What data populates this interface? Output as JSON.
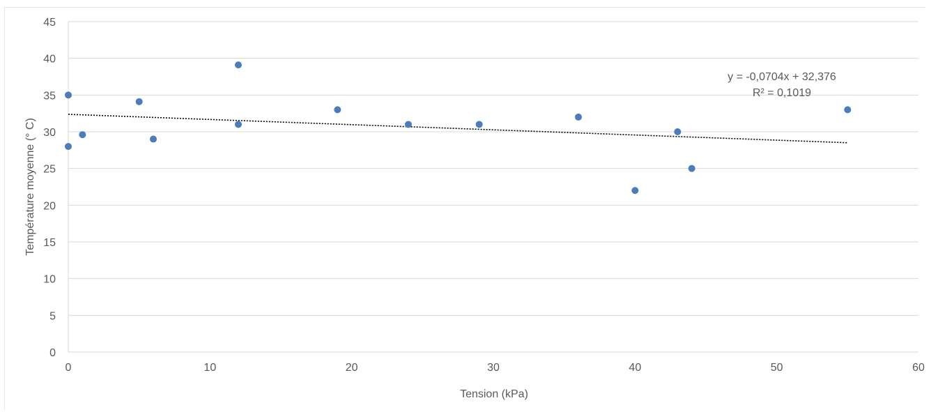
{
  "chart_data": {
    "type": "scatter",
    "xlabel": "Tension (kPa)",
    "ylabel": "Température moyenne (° C)",
    "xlim": [
      0,
      60
    ],
    "ylim": [
      0,
      45
    ],
    "x_ticks": [
      0,
      10,
      20,
      30,
      40,
      50,
      60
    ],
    "y_ticks": [
      0,
      5,
      10,
      15,
      20,
      25,
      30,
      35,
      40,
      45
    ],
    "grid": "horizontal",
    "legend": "none",
    "series": [
      {
        "color": "#4a7ebb",
        "points": [
          {
            "x": 0,
            "y": 35
          },
          {
            "x": 0,
            "y": 28
          },
          {
            "x": 1,
            "y": 29.6
          },
          {
            "x": 5,
            "y": 34.1
          },
          {
            "x": 6,
            "y": 29
          },
          {
            "x": 12,
            "y": 39.1
          },
          {
            "x": 12,
            "y": 31
          },
          {
            "x": 19,
            "y": 33
          },
          {
            "x": 24,
            "y": 31
          },
          {
            "x": 29,
            "y": 31
          },
          {
            "x": 36,
            "y": 32
          },
          {
            "x": 40,
            "y": 22
          },
          {
            "x": 43,
            "y": 30
          },
          {
            "x": 44,
            "y": 25
          },
          {
            "x": 55,
            "y": 33
          }
        ]
      }
    ],
    "trendline": {
      "type": "linear",
      "slope": -0.0704,
      "intercept": 32.376,
      "x_range": [
        0,
        55
      ],
      "style": "dotted",
      "color": "#000000",
      "equation_text": "y = -0,0704x + 32,376",
      "r2_text": "R² = 0,1019"
    }
  }
}
